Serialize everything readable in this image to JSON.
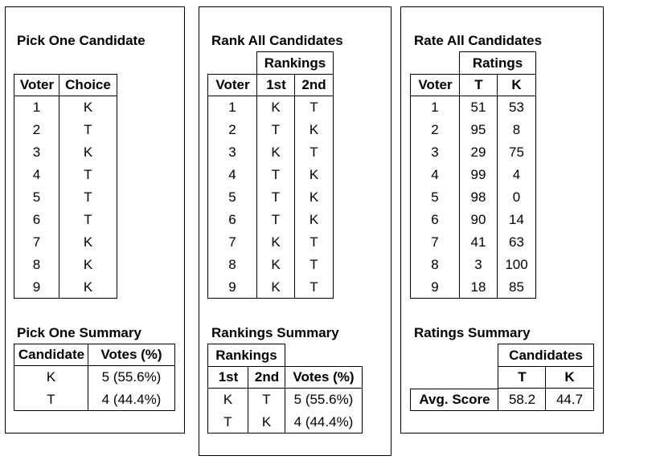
{
  "pick_one": {
    "title": "Pick One Candidate",
    "headers": [
      "Voter",
      "Choice"
    ],
    "rows": [
      [
        "1",
        "K"
      ],
      [
        "2",
        "T"
      ],
      [
        "3",
        "K"
      ],
      [
        "4",
        "T"
      ],
      [
        "5",
        "T"
      ],
      [
        "6",
        "T"
      ],
      [
        "7",
        "K"
      ],
      [
        "8",
        "K"
      ],
      [
        "9",
        "K"
      ]
    ],
    "summary_title": "Pick One Summary",
    "summary_headers": [
      "Candidate",
      "Votes (%)"
    ],
    "summary_rows": [
      [
        "K",
        "5 (55.6%)"
      ],
      [
        "T",
        "4 (44.4%)"
      ]
    ]
  },
  "rank_all": {
    "title": "Rank All Candidates",
    "group_header": "Rankings",
    "headers": [
      "Voter",
      "1st",
      "2nd"
    ],
    "rows": [
      [
        "1",
        "K",
        "T"
      ],
      [
        "2",
        "T",
        "K"
      ],
      [
        "3",
        "K",
        "T"
      ],
      [
        "4",
        "T",
        "K"
      ],
      [
        "5",
        "T",
        "K"
      ],
      [
        "6",
        "T",
        "K"
      ],
      [
        "7",
        "K",
        "T"
      ],
      [
        "8",
        "K",
        "T"
      ],
      [
        "9",
        "K",
        "T"
      ]
    ],
    "summary_title": "Rankings Summary",
    "summary_group_header": "Rankings",
    "summary_headers": [
      "1st",
      "2nd",
      "Votes (%)"
    ],
    "summary_rows": [
      [
        "K",
        "T",
        "5 (55.6%)"
      ],
      [
        "T",
        "K",
        "4 (44.4%)"
      ]
    ]
  },
  "rate_all": {
    "title": "Rate All Candidates",
    "group_header": "Ratings",
    "headers": [
      "Voter",
      "T",
      "K"
    ],
    "rows": [
      [
        "1",
        "51",
        "53"
      ],
      [
        "2",
        "95",
        "8"
      ],
      [
        "3",
        "29",
        "75"
      ],
      [
        "4",
        "99",
        "4"
      ],
      [
        "5",
        "98",
        "0"
      ],
      [
        "6",
        "90",
        "14"
      ],
      [
        "7",
        "41",
        "63"
      ],
      [
        "8",
        "3",
        "100"
      ],
      [
        "9",
        "18",
        "85"
      ]
    ],
    "summary_title": "Ratings Summary",
    "summary_group_header": "Candidates",
    "summary_headers": [
      "T",
      "K"
    ],
    "summary_row_label": "Avg. Score",
    "summary_values": [
      "58.2",
      "44.7"
    ]
  }
}
